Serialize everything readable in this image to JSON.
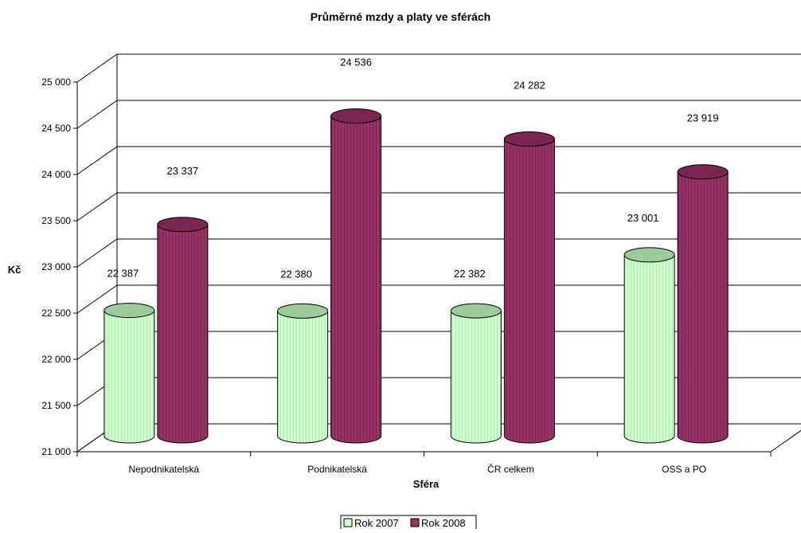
{
  "chart_data": {
    "type": "bar",
    "title": "Průměrné mzdy a platy ve sférách",
    "xlabel": "Sféra",
    "ylabel": "Kč",
    "categories": [
      "Nepodnikatelská",
      "Podnikatelská",
      "ČR celkem",
      "OSS a PO"
    ],
    "series": [
      {
        "name": "Rok 2007",
        "values": [
          22387,
          22380,
          22382,
          23001
        ],
        "labels": [
          "22 387",
          "22 380",
          "22 382",
          "23 001"
        ],
        "color": "#ccffcc"
      },
      {
        "name": "Rok 2008",
        "values": [
          23337,
          24536,
          24282,
          23919
        ],
        "labels": [
          "23 337",
          "24 536",
          "24 282",
          "23 919"
        ],
        "color": "#993366"
      }
    ],
    "ylim": [
      21000,
      25000
    ],
    "yticks": [
      21000,
      21500,
      22000,
      22500,
      23000,
      23500,
      24000,
      24500,
      25000
    ],
    "ytick_labels": [
      "21 000",
      "21 500",
      "22 000",
      "22 500",
      "23 000",
      "23 500",
      "24 000",
      "24 500",
      "25 000"
    ],
    "grid": true,
    "style": "3d-cylinder",
    "legend_position": "bottom"
  }
}
